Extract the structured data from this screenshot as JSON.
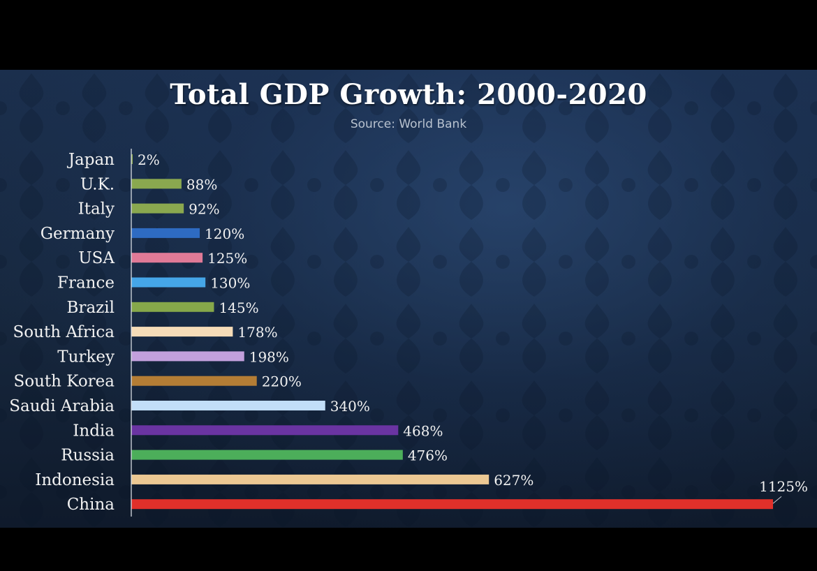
{
  "chart_data": {
    "type": "bar",
    "orientation": "horizontal",
    "title": "Total GDP Growth: 2000-2020",
    "subtitle": "Source: World Bank",
    "xlabel": "",
    "ylabel": "",
    "unit": "%",
    "xlim": [
      0,
      1125
    ],
    "grid": false,
    "legend": "none",
    "categories": [
      "Japan",
      "U.K.",
      "Italy",
      "Germany",
      "USA",
      "France",
      "Brazil",
      "South Africa",
      "Turkey",
      "South Korea",
      "Saudi Arabia",
      "India",
      "Russia",
      "Indonesia",
      "China"
    ],
    "values": [
      2,
      88,
      92,
      120,
      125,
      130,
      145,
      178,
      198,
      220,
      340,
      468,
      476,
      627,
      1125
    ],
    "data_labels": [
      "2%",
      "88%",
      "92%",
      "120%",
      "125%",
      "130%",
      "145%",
      "178%",
      "198%",
      "220%",
      "340%",
      "468%",
      "476%",
      "627%",
      "1125%"
    ],
    "colors": [
      "#8aa84f",
      "#8aa84f",
      "#8aa84f",
      "#2e6bc2",
      "#e07a97",
      "#45a6e8",
      "#86a84a",
      "#f5dcb8",
      "#c2a0dc",
      "#b47d35",
      "#c2def8",
      "#6a34a2",
      "#4cae5a",
      "#ecc893",
      "#e0302a"
    ]
  }
}
